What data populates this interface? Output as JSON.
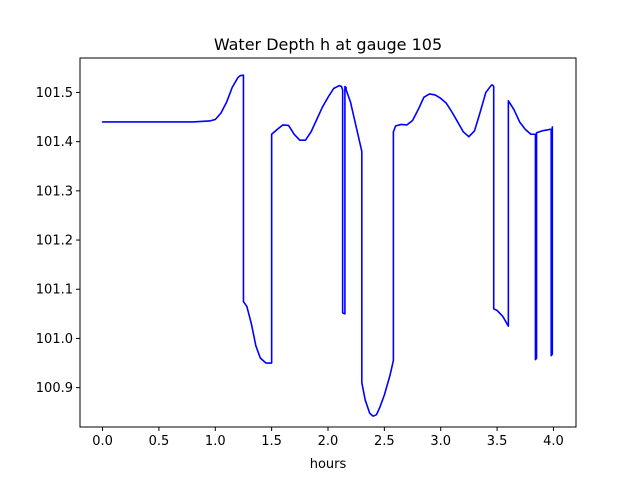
{
  "chart_data": {
    "type": "line",
    "title": "Water Depth h at gauge 105",
    "xlabel": "hours",
    "ylabel": "",
    "xlim": [
      -0.2,
      4.2
    ],
    "ylim": [
      100.82,
      101.57
    ],
    "x_ticks": [
      0.0,
      0.5,
      1.0,
      1.5,
      2.0,
      2.5,
      3.0,
      3.5,
      4.0
    ],
    "x_tick_labels": [
      "0.0",
      "0.5",
      "1.0",
      "1.5",
      "2.0",
      "2.5",
      "3.0",
      "3.5",
      "4.0"
    ],
    "y_ticks": [
      100.9,
      101.0,
      101.1,
      101.2,
      101.3,
      101.4,
      101.5
    ],
    "y_tick_labels": [
      "100.9",
      "101.0",
      "101.1",
      "101.2",
      "101.3",
      "101.4",
      "101.5"
    ],
    "grid": false,
    "legend": "none",
    "colors": {
      "line": "#0000ff",
      "axes": "#000000",
      "background": "#ffffff"
    },
    "series": [
      {
        "x": [
          0.0,
          0.5,
          0.8,
          0.95,
          1.0,
          1.05,
          1.1,
          1.15,
          1.2,
          1.22,
          1.25,
          1.25,
          1.28,
          1.32,
          1.36,
          1.4,
          1.45,
          1.49,
          1.5,
          1.5,
          1.55,
          1.6,
          1.65,
          1.7,
          1.75,
          1.8,
          1.85,
          1.9,
          1.95,
          2.0,
          2.05,
          2.1,
          2.12,
          2.13,
          2.13,
          2.15,
          2.15,
          2.16,
          2.16,
          2.2,
          2.25,
          2.3,
          2.3,
          2.33,
          2.37,
          2.4,
          2.43,
          2.46,
          2.5,
          2.55,
          2.58,
          2.58,
          2.6,
          2.65,
          2.7,
          2.75,
          2.8,
          2.85,
          2.9,
          2.95,
          3.0,
          3.05,
          3.1,
          3.15,
          3.2,
          3.25,
          3.3,
          3.35,
          3.4,
          3.45,
          3.46,
          3.47,
          3.47,
          3.5,
          3.55,
          3.6,
          3.6,
          3.65,
          3.7,
          3.75,
          3.8,
          3.84,
          3.84,
          3.85,
          3.85,
          3.9,
          3.95,
          3.97,
          3.98,
          3.98,
          3.99,
          3.99
        ],
        "y": [
          101.44,
          101.44,
          101.44,
          101.442,
          101.445,
          101.458,
          101.48,
          101.51,
          101.53,
          101.534,
          101.535,
          101.075,
          101.065,
          101.03,
          100.985,
          100.96,
          100.95,
          100.95,
          100.95,
          101.415,
          101.425,
          101.434,
          101.433,
          101.415,
          101.403,
          101.403,
          101.42,
          101.445,
          101.47,
          101.49,
          101.508,
          101.514,
          101.512,
          101.505,
          101.052,
          101.05,
          101.512,
          101.51,
          101.506,
          101.48,
          101.43,
          101.38,
          100.91,
          100.875,
          100.848,
          100.842,
          100.845,
          100.86,
          100.885,
          100.925,
          100.955,
          101.42,
          101.432,
          101.435,
          101.434,
          101.443,
          101.465,
          101.49,
          101.497,
          101.495,
          101.488,
          101.478,
          101.46,
          101.44,
          101.42,
          101.41,
          101.422,
          101.46,
          101.5,
          101.515,
          101.515,
          101.512,
          101.06,
          101.057,
          101.045,
          101.025,
          101.483,
          101.465,
          101.44,
          101.425,
          101.415,
          101.415,
          100.957,
          100.96,
          101.418,
          101.422,
          101.424,
          101.425,
          101.425,
          100.965,
          100.968,
          101.43
        ]
      }
    ]
  }
}
